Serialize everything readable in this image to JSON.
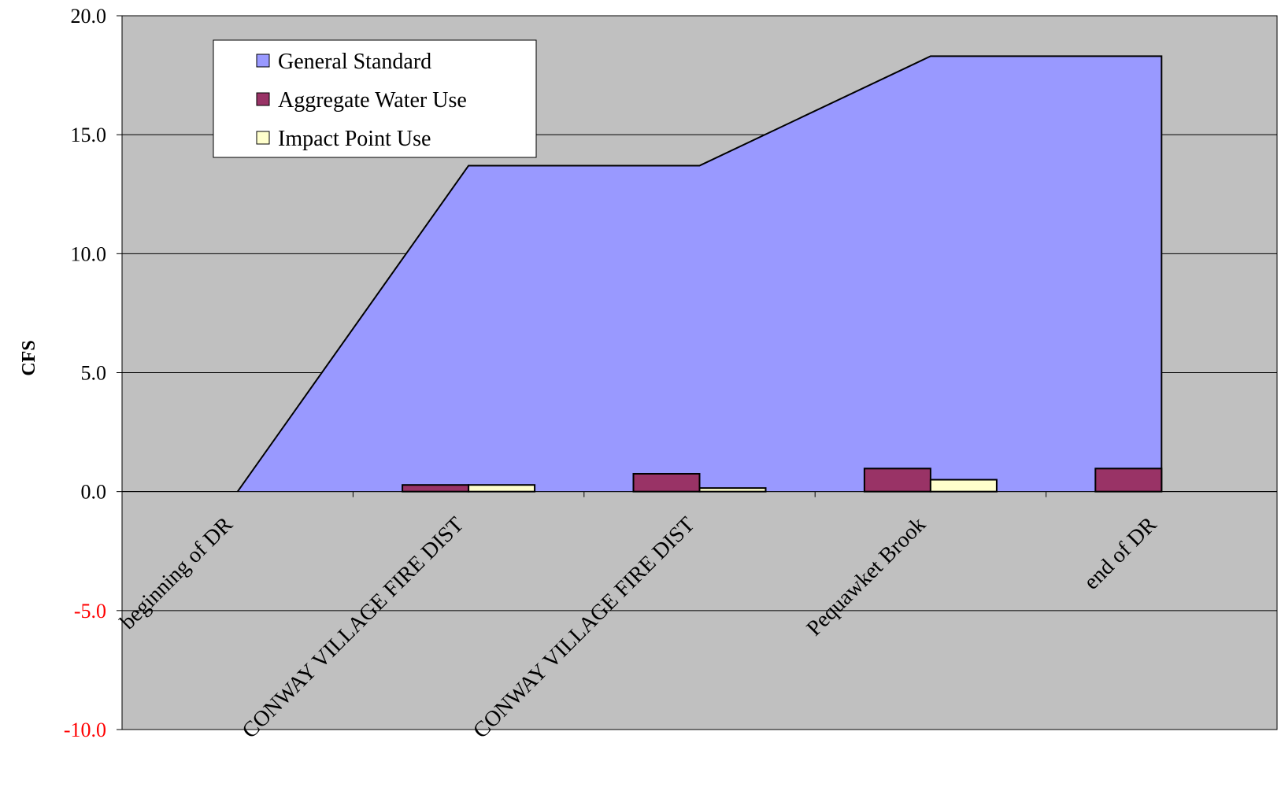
{
  "chart_data": {
    "type": "area",
    "ylabel": "CFS",
    "ylim": [
      -10,
      20
    ],
    "ytick_step": 5,
    "ytick_labels": [
      "20.0",
      "15.0",
      "10.0",
      "5.0",
      "0.0",
      "-5.0",
      "-10.0"
    ],
    "categories": [
      "beginning of DR",
      "CONWAY VILLAGE FIRE DIST",
      "CONWAY VILLAGE FIRE DIST",
      "Pequawket Brook",
      "end of DR"
    ],
    "grid": true,
    "legend_position": "top-left",
    "series": [
      {
        "name": "General Standard",
        "type": "area",
        "color": "#9999FF",
        "values": [
          0.0,
          13.7,
          13.7,
          18.3,
          18.3
        ]
      },
      {
        "name": "Aggregate Water Use",
        "type": "bar",
        "color": "#993366",
        "values": [
          0.0,
          0.28,
          0.75,
          0.97,
          0.97
        ]
      },
      {
        "name": "Impact Point Use",
        "type": "bar",
        "color": "#FFFFCC",
        "values": [
          0.0,
          0.28,
          0.15,
          0.5,
          0.0
        ]
      }
    ],
    "colors": {
      "plot_background": "#C0C0C0",
      "negative_tick_label": "#FF0000",
      "tick_label": "#000000"
    }
  }
}
